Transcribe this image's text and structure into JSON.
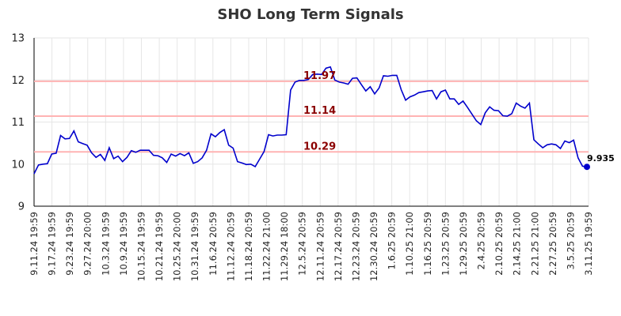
{
  "chart_data": {
    "type": "line",
    "title": "SHO Long Term Signals",
    "xlabel": "",
    "ylabel": "",
    "ylim": [
      9,
      13
    ],
    "yticks": [
      "9",
      "10",
      "11",
      "12",
      "13"
    ],
    "grid": true,
    "colors": {
      "line": "#0000cc",
      "hline": "#ffb3b3",
      "hline_label": "#8b0000",
      "grid": "#e6e6e6"
    },
    "x_tick_labels": [
      "9.11.24 19:59",
      "9.17.24 19:59",
      "9.23.24 19:59",
      "9.27.24 20:00",
      "10.3.24 19:59",
      "10.9.24 19:59",
      "10.15.24 19:59",
      "10.21.24 19:59",
      "10.25.24 20:00",
      "10.31.24 19:59",
      "11.6.24 20:59",
      "11.12.24 20:59",
      "11.18.24 20:59",
      "11.22.24 21:00",
      "11.29.24 18:00",
      "12.5.24 20:59",
      "12.11.24 20:59",
      "12.17.24 20:59",
      "12.23.24 20:59",
      "12.30.24 20:59",
      "1.6.25 20:59",
      "1.10.25 21:00",
      "1.16.25 20:59",
      "1.23.25 20:59",
      "1.29.25 20:59",
      "2.4.25 20:59",
      "2.10.25 20:59",
      "2.14.25 21:00",
      "2.21.25 21:00",
      "2.27.25 20:59",
      "3.5.25 20:59",
      "3.11.25 19:59"
    ],
    "horizontal_lines": [
      {
        "value": 11.97,
        "label": "11.97"
      },
      {
        "value": 11.14,
        "label": "11.14"
      },
      {
        "value": 10.29,
        "label": "10.29"
      }
    ],
    "last_value_label": "9.935",
    "series": [
      {
        "values": [
          9.77,
          9.98,
          10.0,
          10.01,
          10.24,
          10.26,
          10.68,
          10.6,
          10.61,
          10.79,
          10.53,
          10.49,
          10.45,
          10.27,
          10.16,
          10.23,
          10.09,
          10.39,
          10.13,
          10.19,
          10.06,
          10.16,
          10.32,
          10.28,
          10.33,
          10.33,
          10.33,
          10.21,
          10.2,
          10.15,
          10.04,
          10.24,
          10.19,
          10.25,
          10.2,
          10.27,
          10.02,
          10.06,
          10.15,
          10.33,
          10.72,
          10.65,
          10.75,
          10.82,
          10.45,
          10.38,
          10.06,
          10.03,
          9.99,
          10.0,
          9.94,
          10.12,
          10.3,
          10.7,
          10.67,
          10.69,
          10.69,
          10.7,
          11.76,
          11.95,
          11.99,
          11.99,
          12.01,
          12.13,
          12.14,
          12.13,
          12.28,
          12.31,
          12.0,
          11.95,
          11.93,
          11.9,
          12.04,
          12.05,
          11.89,
          11.74,
          11.84,
          11.67,
          11.81,
          12.1,
          12.09,
          12.11,
          12.11,
          11.77,
          11.52,
          11.6,
          11.64,
          11.7,
          11.72,
          11.74,
          11.75,
          11.55,
          11.72,
          11.76,
          11.55,
          11.55,
          11.42,
          11.5,
          11.35,
          11.19,
          11.03,
          10.94,
          11.22,
          11.36,
          11.28,
          11.27,
          11.15,
          11.14,
          11.2,
          11.45,
          11.38,
          11.33,
          11.45,
          10.58,
          10.48,
          10.39,
          10.46,
          10.48,
          10.46,
          10.37,
          10.55,
          10.51,
          10.57,
          10.15,
          9.95,
          9.935
        ]
      }
    ]
  }
}
